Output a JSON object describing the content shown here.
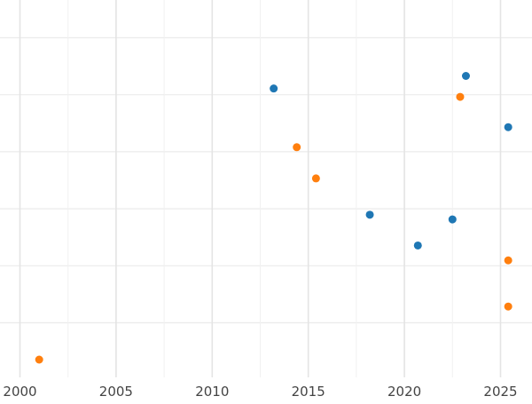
{
  "chart_data": {
    "type": "scatter",
    "title": "",
    "xlabel": "",
    "ylabel": "",
    "xlim": [
      2000,
      2026.6
    ],
    "x_ticks": [
      "2000",
      "2005",
      "2010",
      "2015",
      "2020",
      "2025"
    ],
    "grid": true,
    "series": [
      {
        "color": "#1f77b4",
        "points": [
          {
            "x": 2013.2,
            "y": 78.2
          },
          {
            "x": 2023.2,
            "y": 80.9
          },
          {
            "x": 2025.4,
            "y": 69.9
          },
          {
            "x": 2018.2,
            "y": 51.1
          },
          {
            "x": 2022.5,
            "y": 50.1
          },
          {
            "x": 2020.7,
            "y": 44.5
          }
        ]
      },
      {
        "color": "#ff7f0e",
        "points": [
          {
            "x": 2022.9,
            "y": 76.4
          },
          {
            "x": 2014.4,
            "y": 65.6
          },
          {
            "x": 2015.4,
            "y": 58.9
          },
          {
            "x": 2025.4,
            "y": 41.3
          },
          {
            "x": 2025.4,
            "y": 31.4
          },
          {
            "x": 2001.0,
            "y": 20.0
          }
        ]
      }
    ]
  }
}
